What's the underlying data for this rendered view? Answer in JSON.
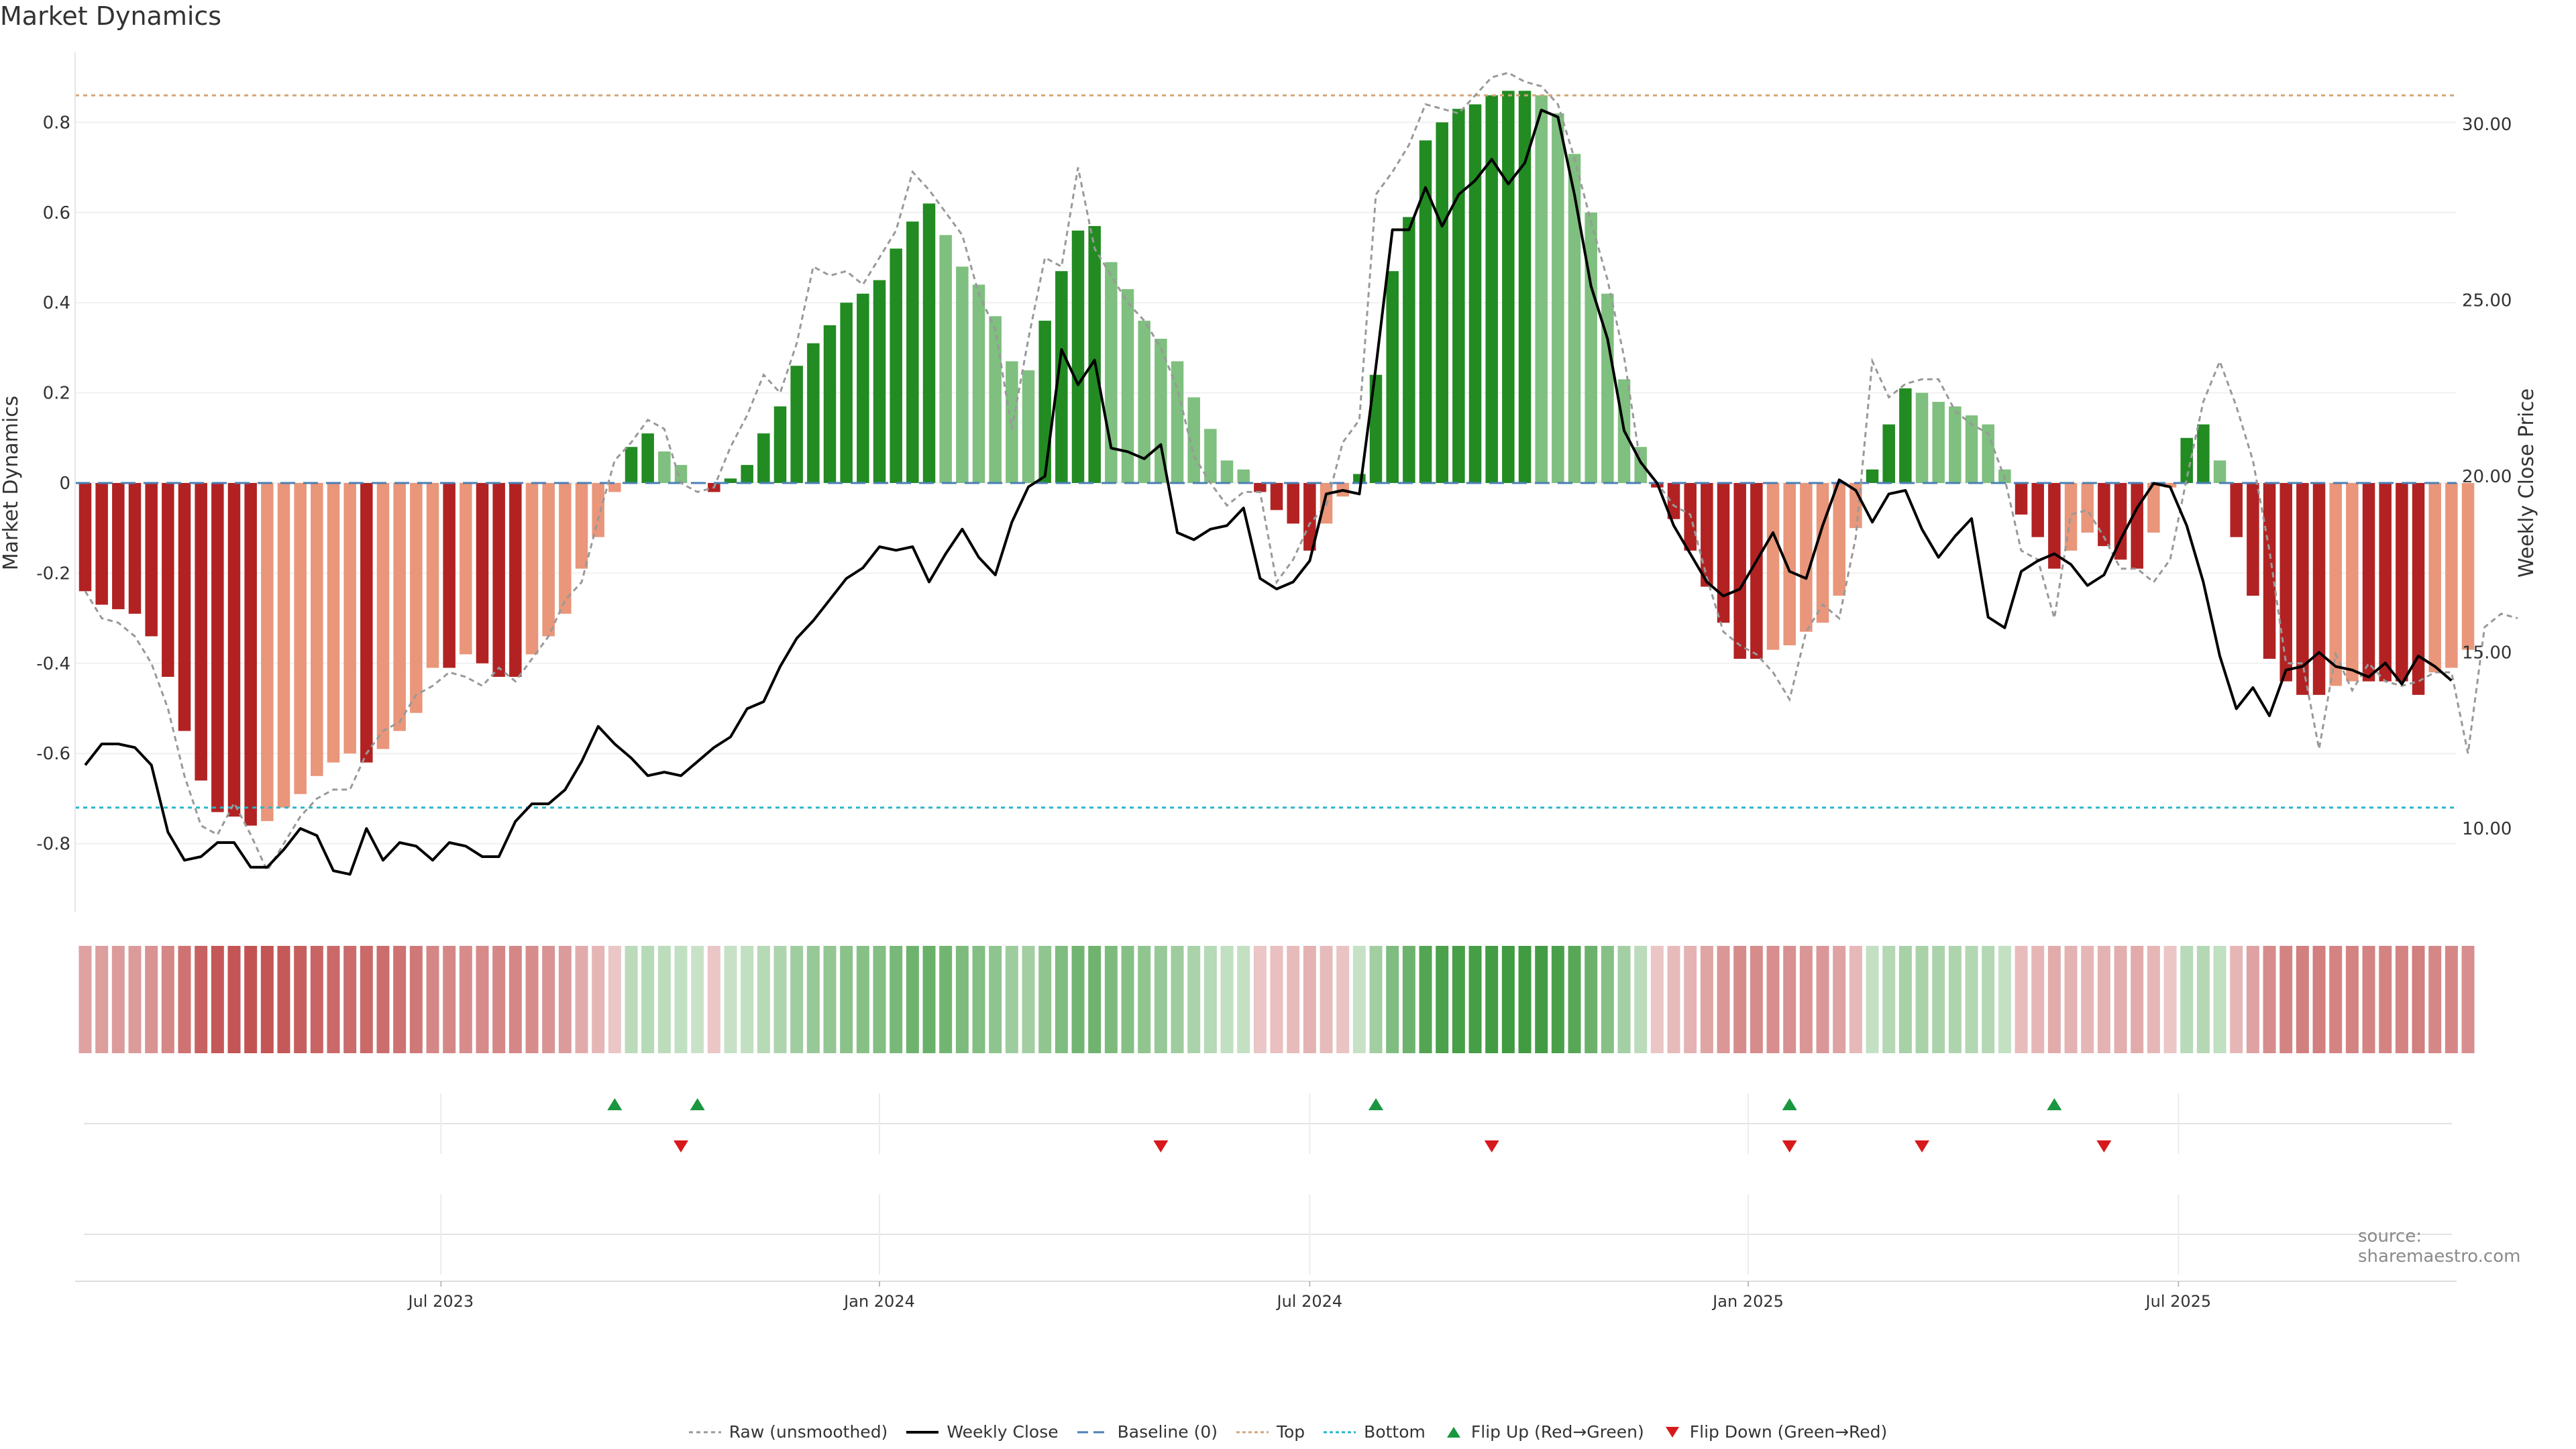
{
  "title": "Market Dynamics",
  "source": "source: sharemaestro.com",
  "colors": {
    "strong_green": "#228b22",
    "light_green": "#7fbf7f",
    "strong_red": "#b22222",
    "light_red": "#e9967a",
    "close": "#000000",
    "raw": "#999999",
    "baseline": "#4a7fb5",
    "top": "#d2a679",
    "bottom": "#29b6c9",
    "flip_up": "#1a9641",
    "flip_down": "#d7191c"
  },
  "legend": [
    {
      "key": "raw",
      "label": "Raw (unsmoothed)"
    },
    {
      "key": "close",
      "label": "Weekly Close"
    },
    {
      "key": "baseline",
      "label": "Baseline (0)"
    },
    {
      "key": "top",
      "label": "Top"
    },
    {
      "key": "bottom",
      "label": "Bottom"
    },
    {
      "key": "flip_up",
      "label": "Flip Up (Red→Green)"
    },
    {
      "key": "flip_down",
      "label": "Flip Down (Green→Red)"
    }
  ],
  "chart_data": {
    "type": "bar",
    "weeks": 145,
    "ylabel": "Market Dynamics",
    "y2label": "Weekly Close Price",
    "ylim": [
      -0.95,
      0.95
    ],
    "y2lim": [
      8.0,
      31.5
    ],
    "yticks": [
      "-0.8",
      "-0.6",
      "-0.4",
      "-0.2",
      "0",
      "0.2",
      "0.4",
      "0.6",
      "0.8"
    ],
    "y2ticks": [
      "10.00",
      "15.00",
      "20.00",
      "25.00",
      "30.00"
    ],
    "xticks": [
      {
        "label": "Jul 2023",
        "week": 21.5
      },
      {
        "label": "Jan 2024",
        "week": 48
      },
      {
        "label": "Jul 2024",
        "week": 74
      },
      {
        "label": "Jan 2025",
        "week": 100.5
      },
      {
        "label": "Jul 2025",
        "week": 126.5
      }
    ],
    "top_level": 0.86,
    "bottom_level": -0.72,
    "baseline": 0,
    "dynamics": [
      -0.24,
      -0.27,
      -0.28,
      -0.29,
      -0.34,
      -0.43,
      -0.55,
      -0.66,
      -0.73,
      -0.74,
      -0.76,
      -0.75,
      -0.72,
      -0.69,
      -0.65,
      -0.62,
      -0.6,
      -0.62,
      -0.59,
      -0.55,
      -0.51,
      -0.41,
      -0.41,
      -0.38,
      -0.4,
      -0.43,
      -0.43,
      -0.38,
      -0.34,
      -0.29,
      -0.19,
      -0.12,
      -0.02,
      0.08,
      0.11,
      0.07,
      0.04,
      0.0,
      -0.02,
      0.01,
      0.04,
      0.11,
      0.17,
      0.26,
      0.31,
      0.35,
      0.4,
      0.42,
      0.45,
      0.52,
      0.58,
      0.62,
      0.55,
      0.48,
      0.44,
      0.37,
      0.27,
      0.25,
      0.36,
      0.47,
      0.56,
      0.57,
      0.49,
      0.43,
      0.36,
      0.32,
      0.27,
      0.19,
      0.12,
      0.05,
      0.03,
      -0.02,
      -0.06,
      -0.09,
      -0.15,
      -0.09,
      -0.03,
      0.02,
      0.24,
      0.47,
      0.59,
      0.76,
      0.8,
      0.83,
      0.84,
      0.86,
      0.87,
      0.87,
      0.86,
      0.82,
      0.73,
      0.6,
      0.42,
      0.23,
      0.08,
      -0.01,
      -0.08,
      -0.15,
      -0.23,
      -0.31,
      -0.39,
      -0.39,
      -0.37,
      -0.36,
      -0.33,
      -0.31,
      -0.25,
      -0.1,
      0.03,
      0.13,
      0.21,
      0.2,
      0.18,
      0.17,
      0.15,
      0.13,
      0.03,
      -0.07,
      -0.12,
      -0.19,
      -0.15,
      -0.11,
      -0.14,
      -0.17,
      -0.19,
      -0.11,
      -0.01,
      0.1,
      0.13,
      0.05,
      -0.12,
      -0.25,
      -0.39,
      -0.44,
      -0.47,
      -0.47,
      -0.45,
      -0.44,
      -0.44,
      -0.44,
      -0.44,
      -0.47,
      -0.42,
      -0.41,
      -0.37
    ],
    "raw": [
      -0.24,
      -0.3,
      -0.31,
      -0.34,
      -0.4,
      -0.5,
      -0.65,
      -0.76,
      -0.78,
      -0.71,
      -0.78,
      -0.86,
      -0.8,
      -0.74,
      -0.7,
      -0.68,
      -0.68,
      -0.6,
      -0.55,
      -0.53,
      -0.47,
      -0.45,
      -0.42,
      -0.43,
      -0.45,
      -0.41,
      -0.44,
      -0.39,
      -0.34,
      -0.26,
      -0.22,
      -0.08,
      0.05,
      0.09,
      0.14,
      0.12,
      0.0,
      -0.02,
      -0.01,
      0.08,
      0.15,
      0.24,
      0.2,
      0.31,
      0.48,
      0.46,
      0.47,
      0.44,
      0.5,
      0.56,
      0.69,
      0.65,
      0.6,
      0.55,
      0.42,
      0.34,
      0.12,
      0.32,
      0.5,
      0.48,
      0.7,
      0.52,
      0.46,
      0.4,
      0.36,
      0.3,
      0.21,
      0.06,
      0.0,
      -0.05,
      -0.02,
      -0.02,
      -0.22,
      -0.17,
      -0.09,
      -0.05,
      0.09,
      0.14,
      0.64,
      0.69,
      0.75,
      0.84,
      0.83,
      0.82,
      0.86,
      0.9,
      0.91,
      0.89,
      0.88,
      0.84,
      0.72,
      0.58,
      0.45,
      0.28,
      0.04,
      0.0,
      -0.05,
      -0.07,
      -0.21,
      -0.33,
      -0.36,
      -0.38,
      -0.42,
      -0.48,
      -0.33,
      -0.27,
      -0.3,
      -0.12,
      0.27,
      0.19,
      0.22,
      0.23,
      0.23,
      0.16,
      0.13,
      0.11,
      0.01,
      -0.15,
      -0.17,
      -0.3,
      -0.07,
      -0.06,
      -0.12,
      -0.19,
      -0.19,
      -0.22,
      -0.17,
      0.01,
      0.18,
      0.27,
      0.17,
      0.05,
      -0.15,
      -0.4,
      -0.4,
      -0.59,
      -0.38,
      -0.46,
      -0.4,
      -0.44,
      -0.45,
      -0.44,
      -0.42,
      -0.42,
      -0.6,
      -0.32,
      -0.29,
      -0.3
    ],
    "close": [
      11.8,
      12.4,
      12.4,
      12.3,
      11.8,
      9.9,
      9.1,
      9.2,
      9.6,
      9.6,
      8.9,
      8.9,
      9.4,
      10.0,
      9.8,
      8.8,
      8.7,
      10.0,
      9.1,
      9.6,
      9.5,
      9.1,
      9.6,
      9.5,
      9.2,
      9.2,
      10.2,
      10.7,
      10.7,
      11.1,
      11.9,
      12.9,
      12.4,
      12.0,
      11.5,
      11.6,
      11.5,
      11.9,
      12.3,
      12.6,
      13.4,
      13.6,
      14.6,
      15.4,
      15.9,
      16.5,
      17.1,
      17.4,
      18.0,
      17.9,
      18.0,
      17.0,
      17.8,
      18.5,
      17.7,
      17.2,
      18.7,
      19.7,
      20.0,
      23.6,
      22.6,
      23.3,
      20.8,
      20.7,
      20.5,
      20.9,
      18.4,
      18.2,
      18.5,
      18.6,
      19.1,
      17.1,
      16.8,
      17.0,
      17.6,
      19.5,
      19.6,
      19.5,
      23.1,
      27.0,
      27.0,
      28.2,
      27.1,
      28.0,
      28.4,
      29.0,
      28.3,
      28.9,
      30.4,
      30.2,
      28.0,
      25.4,
      23.9,
      21.3,
      20.4,
      19.8,
      18.6,
      17.8,
      17.0,
      16.6,
      16.8,
      17.6,
      18.4,
      17.3,
      17.1,
      18.6,
      19.9,
      19.6,
      18.7,
      19.5,
      19.6,
      18.5,
      17.7,
      18.3,
      18.8,
      16.0,
      15.7,
      17.3,
      17.6,
      17.8,
      17.5,
      16.9,
      17.2,
      18.2,
      19.1,
      19.8,
      19.7,
      18.6,
      17.0,
      14.9,
      13.4,
      14.0,
      13.2,
      14.5,
      14.6,
      15.0,
      14.6,
      14.5,
      14.3,
      14.7,
      14.1,
      14.9,
      14.6,
      14.2
    ],
    "flip_up_weeks": [
      32,
      37,
      78,
      103,
      119
    ],
    "flip_down_weeks": [
      36,
      65,
      85,
      103,
      111,
      122
    ]
  }
}
